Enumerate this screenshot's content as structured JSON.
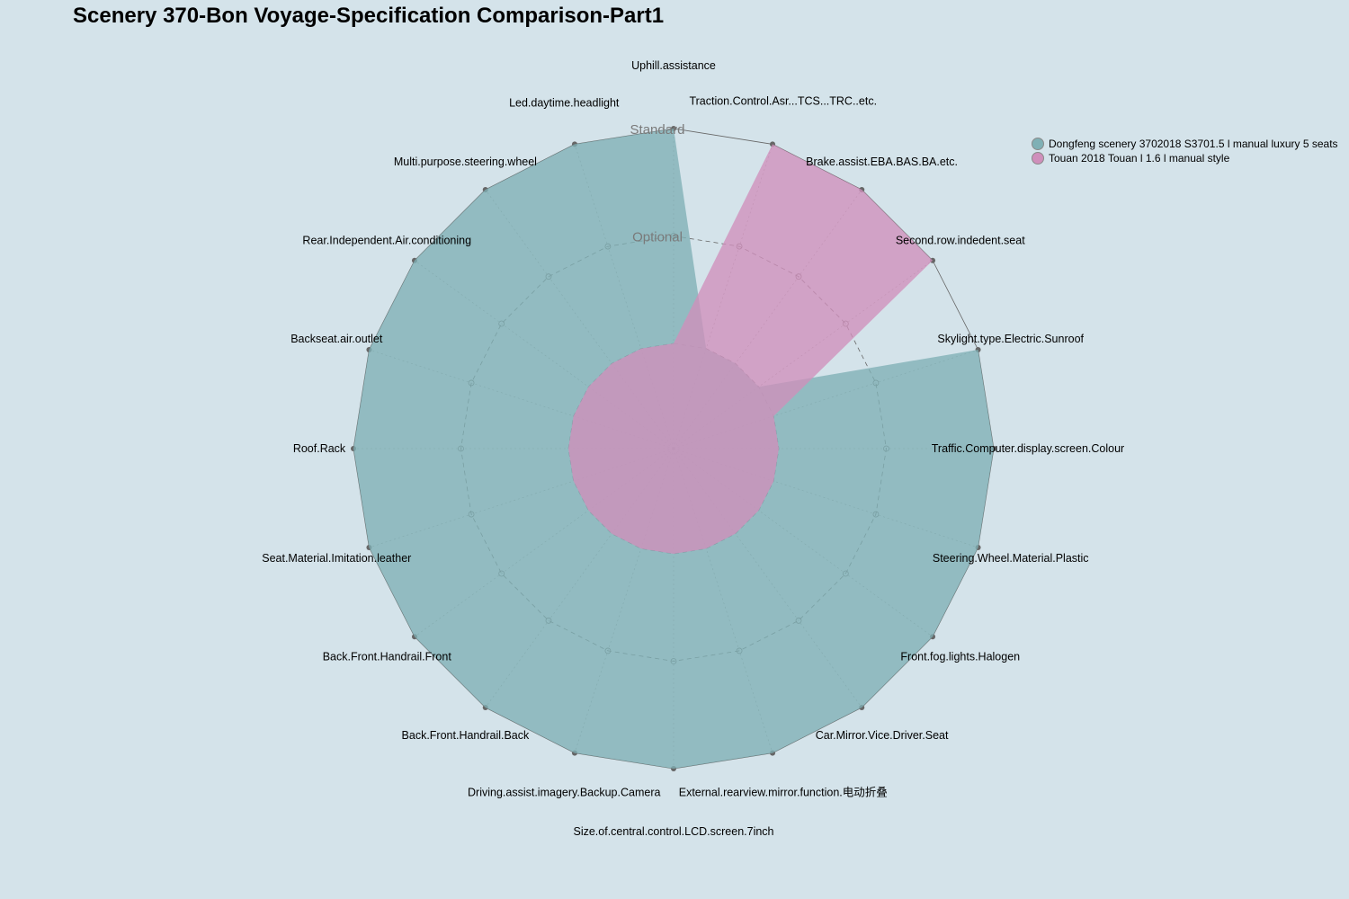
{
  "chart_data": {
    "type": "radar",
    "title": "Scenery 370-Bon Voyage-Specification Comparison-Part1",
    "level_labels": [
      "",
      "Optional",
      "Standard"
    ],
    "range": [
      0,
      2
    ],
    "colors": {
      "background": "#d4e3ea",
      "grid": "#666666",
      "series": [
        "#7fb0b5",
        "#cf8fbb"
      ]
    },
    "legend_position": "right",
    "categories": [
      "Uphill.assistance",
      "Traction.Control.Asr...TCS...TRC..etc.",
      "Brake.assist.EBA.BAS.BA.etc.",
      "Second.row.indedent.seat",
      "Skylight.type.Electric.Sunroof",
      "Traffic.Computer.display.screen.Colour",
      "Steering.Wheel.Material.Plastic",
      "Front.fog.lights.Halogen",
      "Car.Mirror.Vice.Driver.Seat",
      "External.rearview.mirror.function.电动折叠",
      "Size.of.central.control.LCD.screen.7inch",
      "Driving.assist.imagery.Backup.Camera",
      "Back.Front.Handrail.Back",
      "Back.Front.Handrail.Front",
      "Seat.Material.Imitation.leather",
      "Roof.Rack",
      "Backseat.air.outlet",
      "Rear.Independent.Air.conditioning",
      "Multi.purpose.steering.wheel",
      "Led.daytime.headlight"
    ],
    "series": [
      {
        "name": "Dongfeng scenery 3702018 S3701.5 l manual luxury 5 seats",
        "values": [
          2,
          0,
          0,
          0,
          2,
          2,
          2,
          2,
          2,
          2,
          2,
          2,
          2,
          2,
          2,
          2,
          2,
          2,
          2,
          2
        ]
      },
      {
        "name": "Touan 2018 Touan l 1.6 l manual style",
        "values": [
          0,
          2,
          2,
          2,
          0,
          0,
          0,
          0,
          0,
          0,
          0,
          0,
          0,
          0,
          0,
          0,
          0,
          0,
          0,
          0
        ]
      }
    ]
  }
}
